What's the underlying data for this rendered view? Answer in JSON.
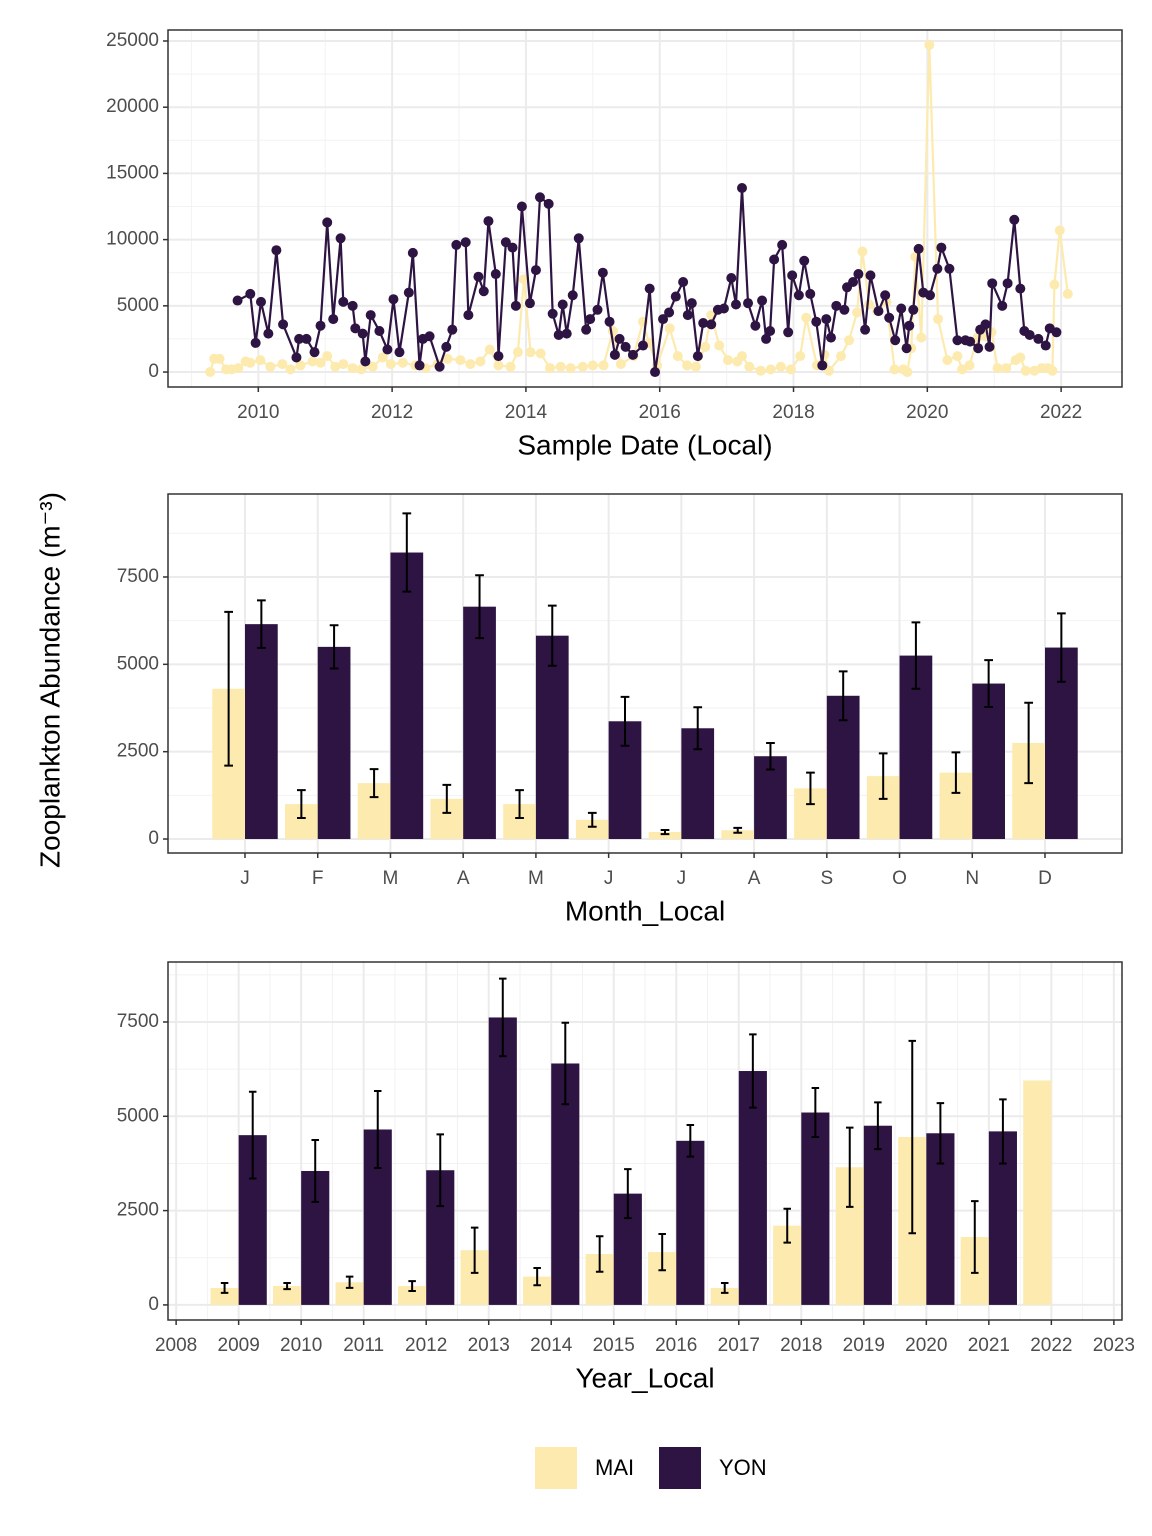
{
  "ylabel": "Zooplankton Abundance (m⁻³)",
  "chart_data": [
    {
      "type": "line",
      "xlabel": "Sample Date (Local)",
      "xlim": [
        2008.65,
        2022.91
      ],
      "xticks": [
        2010,
        2012,
        2014,
        2016,
        2018,
        2020,
        2022
      ],
      "ylim": [
        -1130,
        25830
      ],
      "yticks": [
        0,
        5000,
        10000,
        15000,
        20000,
        25000
      ],
      "grid": true,
      "series": [
        {
          "name": "MAI",
          "color": "#fdeaae",
          "x": [
            2009.28,
            2009.34,
            2009.42,
            2009.52,
            2009.6,
            2009.7,
            2009.81,
            2009.88,
            2010.03,
            2010.18,
            2010.36,
            2010.48,
            2010.63,
            2010.81,
            2010.93,
            2011.03,
            2011.15,
            2011.27,
            2011.41,
            2011.54,
            2011.71,
            2011.86,
            2011.98,
            2012.16,
            2012.35,
            2012.5,
            2012.68,
            2012.83,
            2013.02,
            2013.17,
            2013.32,
            2013.46,
            2013.59,
            2013.77,
            2013.88,
            2013.97,
            2014.07,
            2014.22,
            2014.36,
            2014.52,
            2014.67,
            2014.85,
            2015.0,
            2015.16,
            2015.3,
            2015.42,
            2015.61,
            2015.75,
            2015.84,
            2015.96,
            2016.15,
            2016.27,
            2016.41,
            2016.54,
            2016.68,
            2016.77,
            2016.89,
            2017.02,
            2017.16,
            2017.23,
            2017.34,
            2017.51,
            2017.66,
            2017.81,
            2017.96,
            2018.1,
            2018.19,
            2018.35,
            2018.46,
            2018.53,
            2018.71,
            2018.83,
            2018.95,
            2019.03,
            2019.13,
            2019.25,
            2019.39,
            2019.51,
            2019.64,
            2019.7,
            2019.76,
            2019.82,
            2019.91,
            2020.03,
            2020.16,
            2020.3,
            2020.45,
            2020.52,
            2020.63,
            2020.75,
            2020.87,
            2020.96,
            2021.05,
            2021.18,
            2021.32,
            2021.39,
            2021.47,
            2021.6,
            2021.71,
            2021.8,
            2021.87,
            2021.9,
            2021.98,
            2022.1
          ],
          "values": [
            0,
            1000,
            1000,
            200,
            200,
            300,
            800,
            700,
            900,
            400,
            600,
            200,
            500,
            800,
            700,
            1200,
            400,
            600,
            300,
            200,
            400,
            1100,
            600,
            700,
            500,
            300,
            600,
            1000,
            900,
            600,
            800,
            1700,
            500,
            400,
            1500,
            7000,
            1500,
            1400,
            300,
            400,
            300,
            400,
            500,
            500,
            3100,
            600,
            1200,
            3800,
            2200,
            500,
            3300,
            1200,
            500,
            400,
            1900,
            4300,
            2000,
            900,
            800,
            1200,
            400,
            100,
            200,
            400,
            200,
            1200,
            4100,
            500,
            1300,
            100,
            1200,
            2400,
            4500,
            9100,
            5100,
            4600,
            5300,
            200,
            200,
            0,
            1800,
            8700,
            2600,
            24700,
            4000,
            900,
            1200,
            200,
            500,
            2600,
            2700,
            3000,
            300,
            300,
            900,
            1100,
            100,
            100,
            300,
            300,
            100,
            6600,
            10700,
            5900
          ]
        },
        {
          "name": "YON",
          "color": "#2e1442",
          "x": [
            2009.69,
            2009.88,
            2009.96,
            2010.04,
            2010.15,
            2010.27,
            2010.37,
            2010.57,
            2010.61,
            2010.72,
            2010.84,
            2010.93,
            2011.03,
            2011.12,
            2011.23,
            2011.27,
            2011.41,
            2011.45,
            2011.56,
            2011.6,
            2011.68,
            2011.81,
            2011.93,
            2012.02,
            2012.11,
            2012.25,
            2012.31,
            2012.41,
            2012.46,
            2012.56,
            2012.71,
            2012.81,
            2012.9,
            2012.96,
            2013.1,
            2013.14,
            2013.29,
            2013.37,
            2013.44,
            2013.55,
            2013.59,
            2013.7,
            2013.8,
            2013.85,
            2013.94,
            2014.06,
            2014.15,
            2014.21,
            2014.34,
            2014.4,
            2014.49,
            2014.55,
            2014.61,
            2014.7,
            2014.79,
            2014.9,
            2014.96,
            2015.07,
            2015.15,
            2015.25,
            2015.33,
            2015.4,
            2015.49,
            2015.6,
            2015.75,
            2015.85,
            2015.93,
            2016.05,
            2016.14,
            2016.24,
            2016.35,
            2016.42,
            2016.48,
            2016.57,
            2016.65,
            2016.77,
            2016.87,
            2016.96,
            2017.07,
            2017.14,
            2017.23,
            2017.32,
            2017.43,
            2017.53,
            2017.59,
            2017.65,
            2017.71,
            2017.83,
            2017.92,
            2017.98,
            2018.08,
            2018.16,
            2018.25,
            2018.34,
            2018.43,
            2018.49,
            2018.56,
            2018.64,
            2018.76,
            2018.8,
            2018.89,
            2018.97,
            2019.07,
            2019.15,
            2019.27,
            2019.37,
            2019.43,
            2019.52,
            2019.61,
            2019.69,
            2019.73,
            2019.79,
            2019.87,
            2019.94,
            2020.04,
            2020.15,
            2020.21,
            2020.33,
            2020.45,
            2020.57,
            2020.64,
            2020.76,
            2020.79,
            2020.87,
            2020.93,
            2020.97,
            2021.12,
            2021.2,
            2021.3,
            2021.39,
            2021.45,
            2021.53,
            2021.66,
            2021.77,
            2021.83,
            2021.93
          ],
          "values": [
            5400,
            5900,
            2200,
            5300,
            2900,
            9200,
            3600,
            1100,
            2500,
            2500,
            1500,
            3500,
            11300,
            4000,
            10100,
            5300,
            5000,
            3300,
            2900,
            800,
            4300,
            3100,
            1700,
            5500,
            1500,
            6000,
            9000,
            500,
            2500,
            2700,
            400,
            1900,
            3200,
            9600,
            9800,
            4300,
            7200,
            6100,
            11400,
            7400,
            1200,
            9800,
            9400,
            5000,
            12500,
            5200,
            7700,
            13200,
            12700,
            4400,
            2800,
            5100,
            2900,
            5800,
            10100,
            3200,
            4000,
            4700,
            7500,
            3800,
            1300,
            2500,
            1900,
            1300,
            2000,
            6300,
            0,
            4000,
            4500,
            5700,
            6800,
            4300,
            5200,
            1200,
            3700,
            3600,
            4700,
            4800,
            7100,
            5100,
            13900,
            5200,
            3500,
            5400,
            2500,
            3100,
            8500,
            9600,
            3000,
            7300,
            5800,
            8400,
            5900,
            3800,
            500,
            4000,
            2600,
            5000,
            4700,
            6400,
            6800,
            7400,
            3200,
            7300,
            4600,
            5800,
            4100,
            2400,
            4800,
            1800,
            3500,
            4700,
            9300,
            6000,
            5800,
            7800,
            9400,
            7800,
            2400,
            2400,
            2300,
            1800,
            3200,
            3600,
            1900,
            6700,
            5000,
            6700,
            11500,
            6300,
            3100,
            2800,
            2500,
            2000,
            3300,
            3000
          ]
        }
      ]
    },
    {
      "type": "bar",
      "xlabel": "Month_Local",
      "categories": [
        "J",
        "F",
        "M",
        "A",
        "M",
        "J",
        "J",
        "A",
        "S",
        "O",
        "N",
        "D"
      ],
      "ylim": [
        -400,
        9875
      ],
      "yticks": [
        0,
        2500,
        5000,
        7500
      ],
      "grid": true,
      "series": [
        {
          "color": "#fdeaae",
          "values": [
            4300,
            1000,
            1600,
            1150,
            1000,
            550,
            200,
            250,
            1450,
            1800,
            1900,
            2750
          ],
          "errors": [
            2200,
            400,
            400,
            400,
            400,
            200,
            60,
            70,
            450,
            650,
            580,
            1150
          ]
        },
        {
          "color": "#2e1442",
          "values": [
            6150,
            5500,
            8200,
            6650,
            5820,
            3370,
            3170,
            2370,
            4100,
            5250,
            4450,
            5480
          ],
          "errors": [
            680,
            620,
            1120,
            900,
            860,
            700,
            600,
            380,
            700,
            950,
            670,
            980
          ]
        }
      ]
    },
    {
      "type": "bar",
      "xlabel": "Year_Local",
      "x": [
        2009,
        2010,
        2011,
        2012,
        2013,
        2014,
        2015,
        2016,
        2017,
        2018,
        2019,
        2020,
        2021,
        2022
      ],
      "xlim": [
        2007.87,
        2023.13
      ],
      "xticks": [
        2008,
        2009,
        2010,
        2011,
        2012,
        2013,
        2014,
        2015,
        2016,
        2017,
        2018,
        2019,
        2020,
        2021,
        2022,
        2023
      ],
      "ylim": [
        -400,
        9090
      ],
      "yticks": [
        0,
        2500,
        5000,
        7500
      ],
      "grid": true,
      "series": [
        {
          "color": "#fdeaae",
          "values": [
            450,
            500,
            600,
            500,
            1450,
            750,
            1350,
            1400,
            450,
            2100,
            3650,
            4450,
            1800,
            5950
          ],
          "errors": [
            130,
            80,
            150,
            130,
            600,
            230,
            470,
            480,
            130,
            450,
            1050,
            2550,
            950,
            null
          ]
        },
        {
          "color": "#2e1442",
          "values": [
            4500,
            3550,
            4650,
            3570,
            7620,
            6400,
            2950,
            4350,
            6200,
            5100,
            4750,
            4550,
            4600,
            null
          ],
          "errors": [
            1150,
            820,
            1020,
            950,
            1030,
            1080,
            650,
            420,
            970,
            650,
            620,
            800,
            850,
            null
          ]
        }
      ]
    }
  ]
}
